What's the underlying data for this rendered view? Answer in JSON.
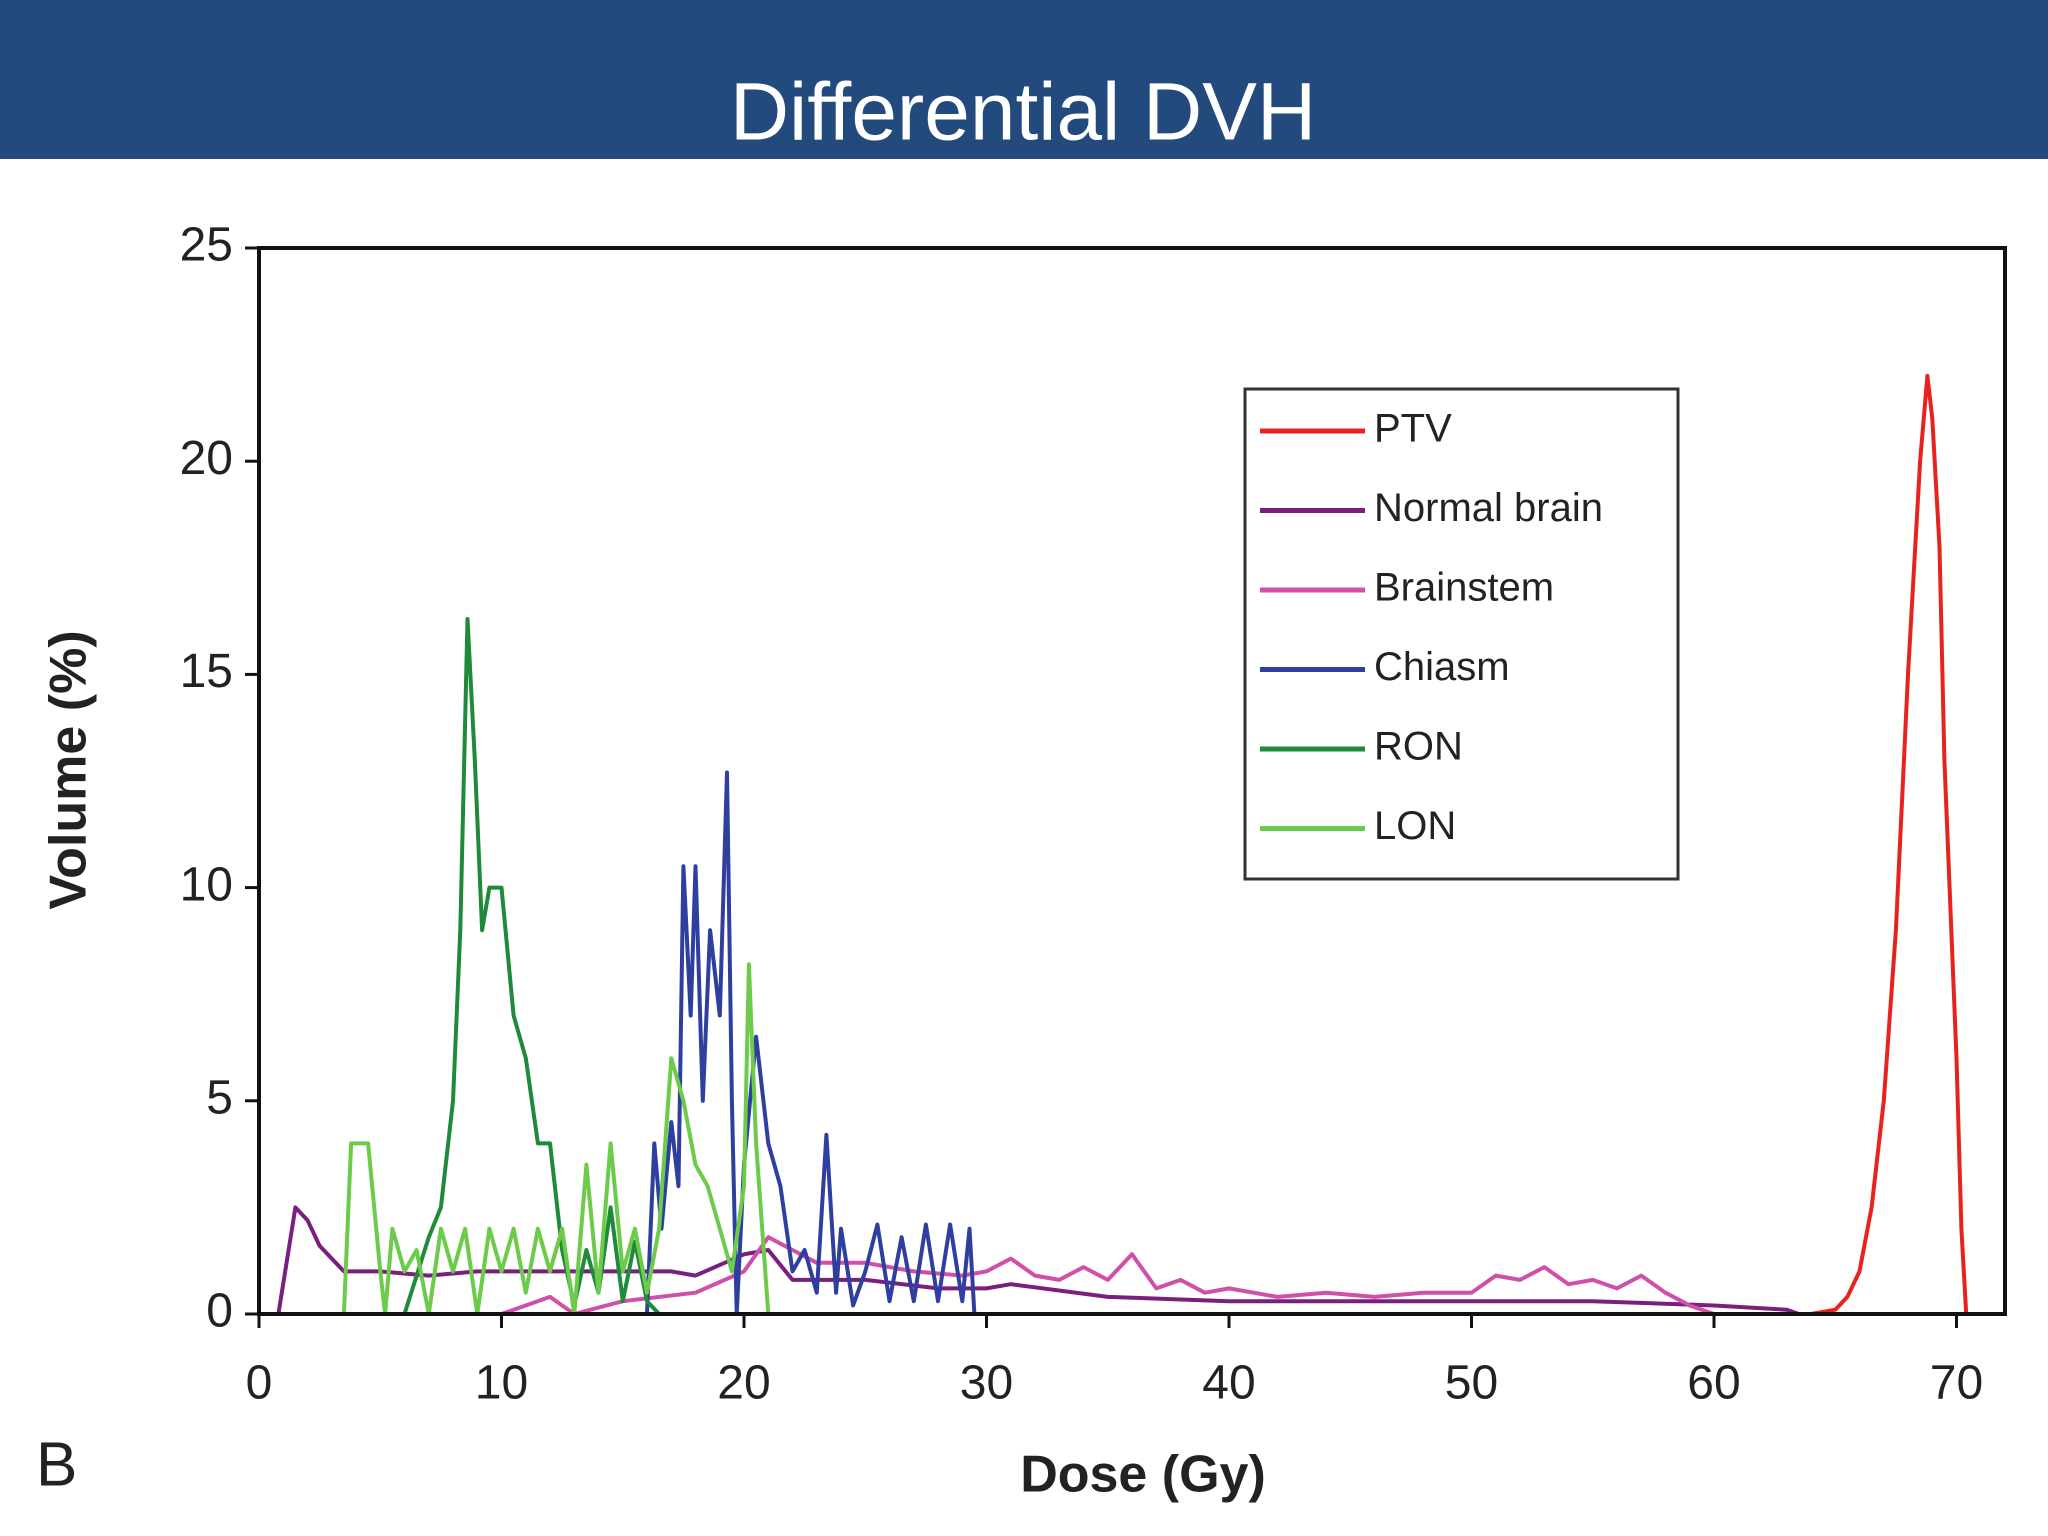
{
  "slide_title": "Differential DVH",
  "panel_label": "B",
  "chart_data": {
    "type": "line",
    "xlabel": "Dose (Gy)",
    "ylabel": "Volume (%)",
    "xlim": [
      0,
      72
    ],
    "ylim": [
      0,
      25
    ],
    "xticks": [
      0,
      10,
      20,
      30,
      40,
      50,
      60,
      70
    ],
    "yticks": [
      0,
      5,
      10,
      15,
      20,
      25
    ],
    "grid": false,
    "legend": "upper right",
    "series": [
      {
        "name": "PTV",
        "color": "#e8231f",
        "x": [
          60,
          64,
          65,
          65.5,
          66,
          66.5,
          67,
          67.5,
          68,
          68.5,
          68.8,
          69,
          69.3,
          69.5,
          70,
          70.2,
          70.4
        ],
        "values": [
          0,
          0,
          0.1,
          0.4,
          1,
          2.5,
          5,
          9,
          15,
          20,
          22,
          21,
          18,
          13,
          6,
          2,
          0
        ]
      },
      {
        "name": "Normal brain",
        "color": "#7b1f7f",
        "x": [
          0.8,
          1.5,
          2,
          2.5,
          3.5,
          5,
          7,
          9,
          11,
          13,
          15,
          17,
          18,
          20,
          21,
          22,
          25,
          28,
          30,
          31,
          35,
          40,
          50,
          55,
          60,
          63,
          63.5
        ],
        "values": [
          0,
          2.5,
          2.2,
          1.6,
          1,
          1,
          0.9,
          1,
          1,
          1,
          1,
          1,
          0.9,
          1.4,
          1.5,
          0.8,
          0.8,
          0.6,
          0.6,
          0.7,
          0.4,
          0.3,
          0.3,
          0.3,
          0.2,
          0.1,
          0
        ]
      },
      {
        "name": "Brainstem",
        "color": "#d04fa8",
        "x": [
          10,
          12,
          13,
          15,
          18,
          20,
          21,
          22,
          23,
          25,
          27,
          29,
          30,
          31,
          32,
          33,
          34,
          35,
          36,
          37,
          38,
          39,
          40,
          42,
          44,
          46,
          48,
          50,
          51,
          52,
          53,
          54,
          55,
          56,
          57,
          58,
          59,
          60
        ],
        "values": [
          0,
          0.4,
          0,
          0.3,
          0.5,
          1,
          1.8,
          1.5,
          1.2,
          1.2,
          1,
          0.9,
          1,
          1.3,
          0.9,
          0.8,
          1.1,
          0.8,
          1.4,
          0.6,
          0.8,
          0.5,
          0.6,
          0.4,
          0.5,
          0.4,
          0.5,
          0.5,
          0.9,
          0.8,
          1.1,
          0.7,
          0.8,
          0.6,
          0.9,
          0.5,
          0.2,
          0
        ]
      },
      {
        "name": "Chiasm",
        "color": "#2f3f9f",
        "x": [
          16,
          16.3,
          16.6,
          17,
          17.3,
          17.5,
          17.8,
          18,
          18.3,
          18.6,
          19,
          19.3,
          19.5,
          19.7,
          20,
          20.5,
          21,
          21.5,
          22,
          22.5,
          23,
          23.4,
          23.8,
          24,
          24.5,
          25,
          25.5,
          26,
          26.5,
          27,
          27.5,
          28,
          28.5,
          29,
          29.3,
          29.5
        ],
        "values": [
          0,
          4,
          2,
          4.5,
          3,
          10.5,
          7,
          10.5,
          5,
          9,
          7,
          12.7,
          5,
          0,
          3.5,
          6.5,
          4,
          3,
          1,
          1.5,
          0.5,
          4.2,
          0.5,
          2,
          0.2,
          1,
          2.1,
          0.3,
          1.8,
          0.3,
          2.1,
          0.3,
          2.1,
          0.3,
          2,
          0
        ]
      },
      {
        "name": "RON",
        "color": "#1f8a3a",
        "x": [
          6,
          7,
          7.5,
          8,
          8.3,
          8.6,
          8.9,
          9.2,
          9.5,
          10,
          10.5,
          11,
          11.5,
          12,
          12.5,
          13,
          13.5,
          14,
          14.5,
          15,
          15.5,
          16,
          16.5
        ],
        "values": [
          0,
          1.8,
          2.5,
          5,
          9,
          16.3,
          13,
          9,
          10,
          10,
          7,
          6,
          4,
          4,
          1.5,
          0.2,
          1.5,
          0.5,
          2.5,
          0.3,
          1.7,
          0.3,
          0
        ]
      },
      {
        "name": "LON",
        "color": "#6ccb4a",
        "x": [
          3.5,
          3.8,
          4.5,
          5,
          5.2,
          5.5,
          6,
          6.5,
          7,
          7.5,
          8,
          8.5,
          9,
          9.5,
          10,
          10.5,
          11,
          11.5,
          12,
          12.5,
          13,
          13.5,
          14,
          14.5,
          15,
          15.5,
          16,
          16.5,
          17,
          17.5,
          18,
          18.5,
          19,
          19.5,
          20,
          20.2,
          20.5,
          21
        ],
        "values": [
          0,
          4,
          4,
          1,
          0,
          2,
          1,
          1.5,
          0,
          2,
          1,
          2,
          0,
          2,
          1,
          2,
          0.5,
          2,
          1,
          2,
          0,
          3.5,
          0.5,
          4,
          1,
          2,
          0.5,
          2,
          6,
          5,
          3.5,
          3,
          2,
          1,
          3,
          8.2,
          4,
          0
        ]
      }
    ]
  }
}
